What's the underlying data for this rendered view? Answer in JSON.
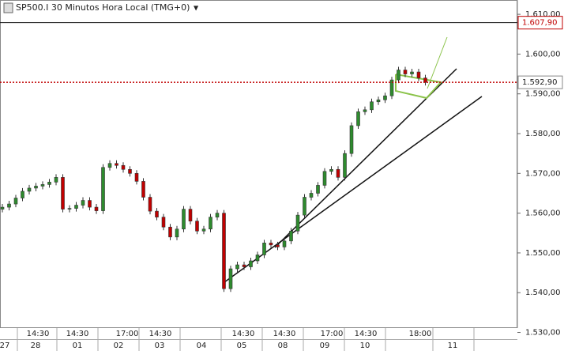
{
  "chart_data": {
    "type": "candlestick",
    "title": "SP500.I 30 Minutos Hora Local (TMG+0)",
    "open": [
      1561.0,
      1561.5,
      1562.3,
      1563.8,
      1565.5,
      1566.3,
      1566.8,
      1567.2,
      1567.8,
      1569.0,
      1561.0,
      1561.2,
      1562.0,
      1563.2,
      1561.5,
      1560.6,
      1571.5,
      1572.5,
      1572.0,
      1571.0,
      1570.0,
      1568.0,
      1564.0,
      1560.5,
      1559.0,
      1556.5,
      1554.0,
      1556.0,
      1561.0,
      1558.0,
      1555.5,
      1556.0,
      1559.0,
      1560.0,
      1541.0,
      1546.0,
      1547.0,
      1546.5,
      1548.0,
      1549.5,
      1552.5,
      1552.0,
      1551.5,
      1553.0,
      1555.5,
      1559.5,
      1564.0,
      1565.0,
      1567.0,
      1570.5,
      1571.0,
      1569.0,
      1575.0,
      1582.0,
      1585.5,
      1586.0,
      1588.0,
      1588.5,
      1589.5,
      1593.5,
      1596.0,
      1595.0,
      1595.5,
      1594.0
    ],
    "high": [
      1562.3,
      1563.1,
      1564.6,
      1566.3,
      1567.1,
      1567.6,
      1568.0,
      1568.6,
      1569.8,
      1569.8,
      1562.0,
      1562.8,
      1564.0,
      1564.0,
      1562.3,
      1572.3,
      1573.3,
      1573.3,
      1572.8,
      1571.8,
      1570.8,
      1568.8,
      1564.8,
      1561.3,
      1559.8,
      1557.3,
      1556.8,
      1561.8,
      1561.8,
      1558.8,
      1556.8,
      1559.8,
      1560.8,
      1560.8,
      1546.8,
      1547.8,
      1547.8,
      1548.8,
      1550.3,
      1553.3,
      1553.3,
      1552.8,
      1553.8,
      1556.3,
      1560.3,
      1564.8,
      1565.8,
      1567.8,
      1571.3,
      1571.8,
      1571.8,
      1575.8,
      1582.8,
      1586.3,
      1586.8,
      1588.8,
      1589.3,
      1590.3,
      1594.3,
      1596.8,
      1596.8,
      1596.3,
      1596.3,
      1594.8
    ],
    "low": [
      1560.2,
      1560.7,
      1561.5,
      1563.0,
      1564.7,
      1565.5,
      1566.0,
      1566.4,
      1567.0,
      1560.2,
      1560.2,
      1560.4,
      1561.2,
      1560.7,
      1559.8,
      1559.8,
      1570.7,
      1571.2,
      1570.2,
      1569.2,
      1567.2,
      1563.2,
      1559.7,
      1558.2,
      1555.7,
      1553.2,
      1553.2,
      1555.2,
      1557.2,
      1554.7,
      1554.7,
      1555.2,
      1558.2,
      1540.2,
      1540.2,
      1545.2,
      1545.7,
      1545.7,
      1547.2,
      1548.7,
      1551.2,
      1550.7,
      1550.7,
      1552.2,
      1554.7,
      1558.7,
      1563.2,
      1564.2,
      1566.2,
      1569.7,
      1568.2,
      1568.2,
      1574.2,
      1581.2,
      1584.7,
      1585.2,
      1587.2,
      1587.7,
      1588.7,
      1592.7,
      1594.2,
      1594.2,
      1593.2,
      1592.1
    ],
    "close": [
      1561.5,
      1562.3,
      1563.8,
      1565.5,
      1566.3,
      1566.8,
      1567.2,
      1567.8,
      1569.0,
      1561.0,
      1561.2,
      1562.0,
      1563.2,
      1561.5,
      1560.6,
      1571.5,
      1572.5,
      1572.0,
      1571.0,
      1570.0,
      1568.0,
      1564.0,
      1560.5,
      1559.0,
      1556.5,
      1554.0,
      1556.0,
      1561.0,
      1558.0,
      1555.5,
      1556.0,
      1559.0,
      1560.0,
      1541.0,
      1546.0,
      1547.0,
      1546.5,
      1548.0,
      1549.5,
      1552.5,
      1552.0,
      1551.5,
      1553.0,
      1555.5,
      1559.5,
      1564.0,
      1565.0,
      1567.0,
      1570.5,
      1571.0,
      1569.0,
      1575.0,
      1582.0,
      1585.5,
      1586.0,
      1588.0,
      1588.5,
      1589.5,
      1593.5,
      1596.0,
      1595.0,
      1595.5,
      1594.0,
      1592.9
    ],
    "up_color": "#2e8b2e",
    "down_color": "#c00000",
    "ylim": [
      1531.1,
      1613.6
    ],
    "yticks": [
      {
        "value": 1530,
        "label": "1.530,00"
      },
      {
        "value": 1540,
        "label": "1.540,00"
      },
      {
        "value": 1550,
        "label": "1.550,00"
      },
      {
        "value": 1560,
        "label": "1.560,00"
      },
      {
        "value": 1570,
        "label": "1.570,00"
      },
      {
        "value": 1580,
        "label": "1.580,00"
      },
      {
        "value": 1590,
        "label": "1.590,00"
      },
      {
        "value": 1600,
        "label": "1.600,00"
      },
      {
        "value": 1610,
        "label": "1.610,00"
      }
    ],
    "price_lines": [
      {
        "value": 1607.9,
        "label": "1.607,90",
        "style": "solid"
      },
      {
        "value": 1592.9,
        "label": "1.592,90",
        "style": "dotted"
      }
    ],
    "time_labels": [
      "14:30",
      "14:30",
      "17:00",
      "14:30",
      "14:30",
      "14:30",
      "17:00",
      "14:30",
      "18:00"
    ],
    "date_labels": [
      "27",
      "28",
      "01",
      "02",
      "03",
      "04",
      "05",
      "08",
      "09",
      "10",
      "11"
    ]
  }
}
